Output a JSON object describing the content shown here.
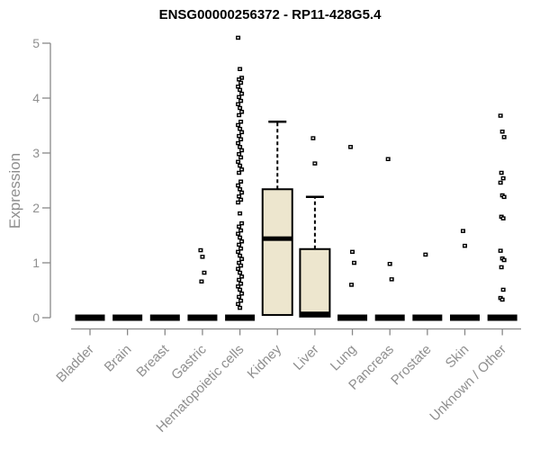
{
  "chart_data": {
    "type": "boxplot",
    "title": "ENSG00000256372 - RP11-428G5.4",
    "ylabel": "Expression",
    "xlabel": "",
    "ylim": [
      0,
      5.2
    ],
    "yticks": [
      0,
      1,
      2,
      3,
      4,
      5
    ],
    "grid": false,
    "legend": "none",
    "categories": [
      "Bladder",
      "Brain",
      "Breast",
      "Gastric",
      "Hematopoietic cells",
      "Kidney",
      "Liver",
      "Lung",
      "Pancreas",
      "Prostate",
      "Skin",
      "Unknown / Other"
    ],
    "boxes": [
      {
        "category": "Bladder",
        "q1": 0,
        "median": 0,
        "q3": 0,
        "whisker_low": 0,
        "whisker_high": 0,
        "outliers": []
      },
      {
        "category": "Brain",
        "q1": 0,
        "median": 0,
        "q3": 0,
        "whisker_low": 0,
        "whisker_high": 0,
        "outliers": []
      },
      {
        "category": "Breast",
        "q1": 0,
        "median": 0,
        "q3": 0,
        "whisker_low": 0,
        "whisker_high": 0,
        "outliers": []
      },
      {
        "category": "Gastric",
        "q1": 0,
        "median": 0,
        "q3": 0,
        "whisker_low": 0,
        "whisker_high": 0,
        "outliers": [
          1.23,
          1.11,
          0.82,
          0.66
        ]
      },
      {
        "category": "Hematopoietic cells",
        "q1": 0,
        "median": 0,
        "q3": 0,
        "whisker_low": 0,
        "whisker_high": 0,
        "outliers": [
          5.1,
          4.53,
          4.37,
          4.34,
          4.28,
          4.21,
          4.15,
          4.08,
          4.02,
          3.95,
          3.89,
          3.82,
          3.75,
          3.69,
          3.57,
          3.51,
          3.44,
          3.38,
          3.31,
          3.25,
          3.18,
          3.11,
          3.05,
          2.98,
          2.92,
          2.84,
          2.77,
          2.7,
          2.64,
          2.48,
          2.41,
          2.34,
          2.28,
          2.21,
          2.15,
          2.1,
          1.9,
          1.72,
          1.66,
          1.59,
          1.53,
          1.46,
          1.39,
          1.33,
          1.26,
          1.2,
          1.13,
          1.07,
          1.0,
          0.95,
          0.89,
          0.82,
          0.75,
          0.69,
          0.62,
          0.57,
          0.51,
          0.44,
          0.38,
          0.31,
          0.25,
          0.18
        ]
      },
      {
        "category": "Kidney",
        "q1": 0.05,
        "median": 1.44,
        "q3": 2.34,
        "whisker_low": 0.05,
        "whisker_high": 3.57,
        "outliers": []
      },
      {
        "category": "Liver",
        "q1": 0.02,
        "median": 0.07,
        "q3": 1.25,
        "whisker_low": 0.02,
        "whisker_high": 2.2,
        "outliers": [
          3.27,
          2.81
        ]
      },
      {
        "category": "Lung",
        "q1": 0,
        "median": 0,
        "q3": 0,
        "whisker_low": 0,
        "whisker_high": 0,
        "outliers": [
          3.11,
          1.2,
          1.0,
          0.6
        ]
      },
      {
        "category": "Pancreas",
        "q1": 0,
        "median": 0,
        "q3": 0,
        "whisker_low": 0,
        "whisker_high": 0,
        "outliers": [
          2.89,
          0.98,
          0.7
        ]
      },
      {
        "category": "Prostate",
        "q1": 0,
        "median": 0,
        "q3": 0,
        "whisker_low": 0,
        "whisker_high": 0,
        "outliers": [
          1.15
        ]
      },
      {
        "category": "Skin",
        "q1": 0,
        "median": 0,
        "q3": 0,
        "whisker_low": 0,
        "whisker_high": 0,
        "outliers": [
          1.58,
          1.31
        ]
      },
      {
        "category": "Unknown / Other",
        "q1": 0,
        "median": 0,
        "q3": 0,
        "whisker_low": 0,
        "whisker_high": 0,
        "outliers": [
          3.68,
          3.39,
          3.29,
          2.64,
          2.54,
          2.46,
          2.23,
          2.2,
          1.84,
          1.81,
          1.22,
          1.08,
          1.05,
          0.92,
          0.51,
          0.36,
          0.33
        ]
      }
    ],
    "colors": {
      "box_fill": "#EDE6CE",
      "box_border": "#000000",
      "median": "#000000",
      "points": "#000000",
      "axis": "#888888",
      "label": "#8f8f8f",
      "title": "#000000",
      "background": "#ffffff"
    }
  }
}
